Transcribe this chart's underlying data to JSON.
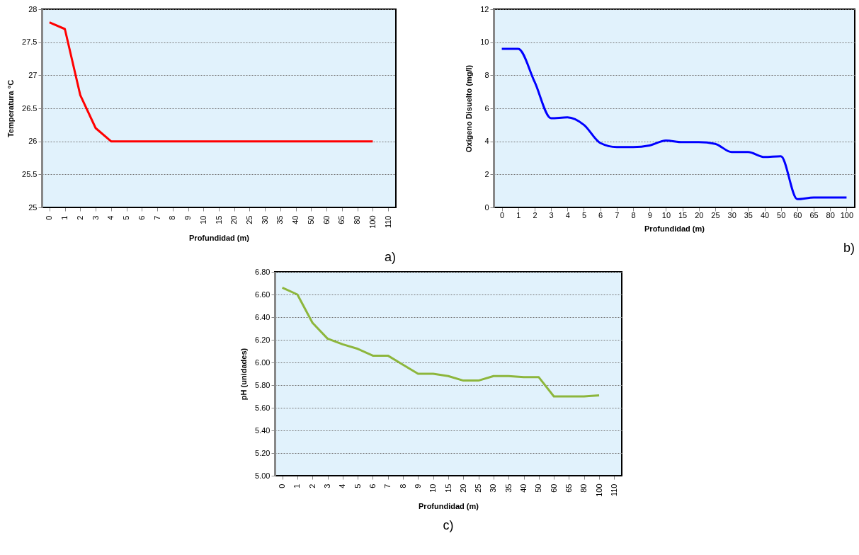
{
  "chart_data": [
    {
      "type": "line",
      "xlabel": "Profundidad (m)",
      "ylabel": "Temperatura °C",
      "annotations": [
        "a)"
      ],
      "grid": "y",
      "categories": [
        "0",
        "1",
        "2",
        "3",
        "4",
        "5",
        "6",
        "7",
        "8",
        "9",
        "10",
        "15",
        "20",
        "25",
        "30",
        "35",
        "40",
        "50",
        "60",
        "65",
        "80",
        "100",
        "110"
      ],
      "series": [
        {
          "color": "#ff0000",
          "values": [
            27.8,
            27.7,
            26.7,
            26.2,
            26.0,
            26.0,
            26.0,
            26.0,
            26.0,
            26.0,
            26.0,
            26.0,
            26.0,
            26.0,
            26.0,
            26.0,
            26.0,
            26.0,
            26.0,
            26.0,
            26.0,
            26.0,
            null
          ]
        }
      ],
      "ylim": [
        25,
        28
      ],
      "yticks": [
        25,
        25.5,
        26,
        26.5,
        27,
        27.5,
        28
      ]
    },
    {
      "type": "line",
      "xlabel": "Profundidad (m)",
      "ylabel": "Oxígeno Disuelto (mg/l)",
      "annotations": [
        "b)"
      ],
      "grid": "y",
      "categories": [
        "0",
        "1",
        "2",
        "3",
        "4",
        "5",
        "6",
        "7",
        "8",
        "9",
        "10",
        "15",
        "20",
        "25",
        "30",
        "35",
        "40",
        "50",
        "60",
        "65",
        "80",
        "100"
      ],
      "series": [
        {
          "color": "#0000ff",
          "values": [
            9.6,
            9.6,
            7.6,
            5.4,
            5.45,
            5.0,
            3.9,
            3.65,
            3.65,
            3.75,
            4.05,
            3.95,
            3.95,
            3.85,
            3.35,
            3.35,
            3.05,
            3.1,
            0.5,
            0.6,
            0.6,
            0.6
          ]
        }
      ],
      "ylim": [
        0,
        12
      ],
      "yticks": [
        0,
        2,
        4,
        6,
        8,
        10,
        12
      ]
    },
    {
      "type": "line",
      "xlabel": "Profundidad (m)",
      "ylabel": "pH (unidades)",
      "annotations": [
        "c)"
      ],
      "grid": "y",
      "categories": [
        "0",
        "1",
        "2",
        "3",
        "4",
        "5",
        "6",
        "7",
        "8",
        "9",
        "10",
        "15",
        "20",
        "25",
        "30",
        "35",
        "40",
        "50",
        "60",
        "65",
        "80",
        "100",
        "110"
      ],
      "series": [
        {
          "color": "#8db63c",
          "values": [
            6.66,
            6.6,
            6.35,
            6.21,
            6.16,
            6.12,
            6.06,
            6.06,
            5.98,
            5.9,
            5.9,
            5.88,
            5.84,
            5.84,
            5.88,
            5.88,
            5.87,
            5.87,
            5.7,
            5.7,
            5.7,
            5.71,
            null
          ]
        }
      ],
      "ylim": [
        5.0,
        6.8
      ],
      "yticks": [
        {
          "value": 5.0,
          "label": "5.00"
        },
        {
          "value": 5.2,
          "label": "5.20"
        },
        {
          "value": 5.4,
          "label": "5.40"
        },
        {
          "value": 5.6,
          "label": "5.60"
        },
        {
          "value": 5.8,
          "label": "5.80"
        },
        {
          "value": 6.0,
          "label": "6.00"
        },
        {
          "value": 6.2,
          "label": "6.20"
        },
        {
          "value": 6.4,
          "label": "6.40"
        },
        {
          "value": 6.6,
          "label": "6.60"
        },
        {
          "value": 6.8,
          "label": "6.80"
        }
      ]
    }
  ]
}
